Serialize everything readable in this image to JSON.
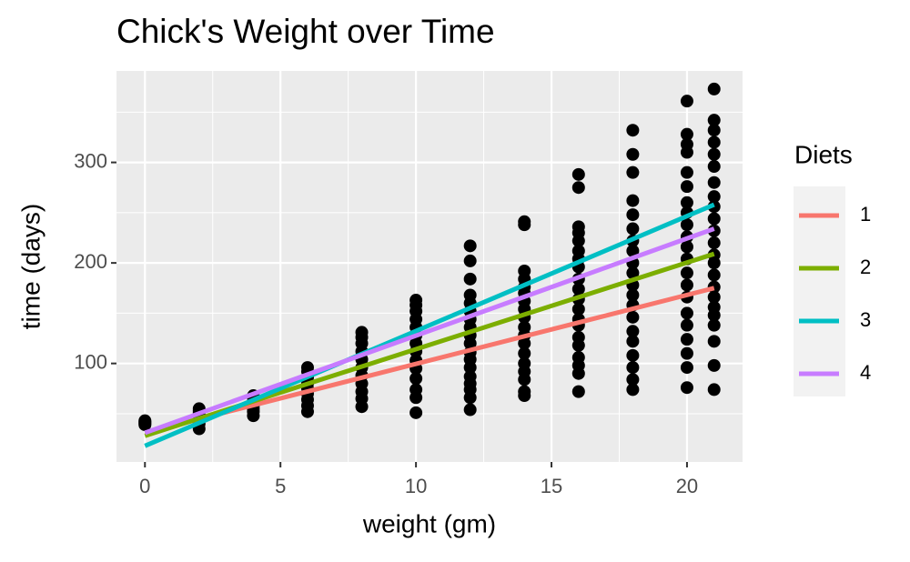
{
  "chart_data": {
    "type": "scatter",
    "title": "Chick's Weight over Time",
    "x_label": "weight (gm)",
    "y_label": "time (days)",
    "x": [
      0,
      0,
      0,
      0,
      0,
      2,
      2,
      2,
      2,
      2,
      2,
      2,
      4,
      4,
      4,
      4,
      4,
      4,
      4,
      6,
      6,
      6,
      6,
      6,
      6,
      6,
      6,
      6,
      8,
      8,
      8,
      8,
      8,
      8,
      8,
      8,
      8,
      8,
      8,
      10,
      10,
      10,
      10,
      10,
      10,
      10,
      10,
      10,
      10,
      10,
      10,
      10,
      10,
      12,
      12,
      12,
      12,
      12,
      12,
      12,
      12,
      12,
      12,
      12,
      12,
      12,
      12,
      12,
      12,
      12,
      12,
      14,
      14,
      14,
      14,
      14,
      14,
      14,
      14,
      14,
      14,
      14,
      14,
      14,
      14,
      14,
      14,
      14,
      14,
      16,
      16,
      16,
      16,
      16,
      16,
      16,
      16,
      16,
      16,
      16,
      16,
      16,
      16,
      16,
      16,
      16,
      16,
      16,
      16,
      18,
      18,
      18,
      18,
      18,
      18,
      18,
      18,
      18,
      18,
      18,
      18,
      18,
      18,
      18,
      18,
      18,
      18,
      18,
      18,
      20,
      20,
      20,
      20,
      20,
      20,
      20,
      20,
      20,
      20,
      20,
      20,
      20,
      20,
      20,
      20,
      20,
      20,
      20,
      20,
      20,
      21,
      21,
      21,
      21,
      21,
      21,
      21,
      21,
      21,
      21,
      21,
      21,
      21,
      21,
      21,
      21,
      21,
      21,
      21,
      21,
      21,
      21,
      21
    ],
    "values": [
      39,
      40,
      41,
      42,
      43,
      35,
      40,
      45,
      49,
      51,
      53,
      55,
      48,
      52,
      55,
      58,
      62,
      66,
      68,
      52,
      58,
      64,
      70,
      75,
      80,
      86,
      92,
      96,
      57,
      65,
      72,
      80,
      88,
      96,
      104,
      112,
      120,
      126,
      131,
      51,
      66,
      74,
      85,
      95,
      103,
      112,
      120,
      128,
      136,
      144,
      152,
      158,
      163,
      54,
      66,
      74,
      80,
      87,
      96,
      104,
      111,
      120,
      128,
      136,
      144,
      152,
      160,
      168,
      184,
      202,
      217,
      68,
      72,
      84,
      92,
      100,
      110,
      120,
      128,
      136,
      146,
      154,
      162,
      170,
      176,
      184,
      192,
      238,
      241,
      72,
      90,
      98,
      106,
      118,
      126,
      138,
      144,
      154,
      164,
      174,
      184,
      196,
      204,
      212,
      222,
      230,
      236,
      275,
      288,
      74,
      84,
      96,
      108,
      122,
      132,
      146,
      158,
      168,
      178,
      190,
      200,
      212,
      222,
      234,
      248,
      262,
      290,
      308,
      332,
      76,
      96,
      110,
      124,
      138,
      150,
      166,
      178,
      190,
      204,
      216,
      226,
      238,
      250,
      260,
      276,
      290,
      310,
      318,
      328,
      361,
      74,
      98,
      122,
      138,
      148,
      156,
      166,
      176,
      188,
      200,
      208,
      220,
      232,
      244,
      256,
      266,
      280,
      296,
      308,
      320,
      332,
      342,
      373
    ],
    "point_color": "#000000",
    "series": [
      {
        "name": "1",
        "color": "#F8766D",
        "x": [
          0,
          21
        ],
        "values": [
          31,
          175
        ]
      },
      {
        "name": "2",
        "color": "#7CAE00",
        "x": [
          0,
          21
        ],
        "values": [
          28,
          209
        ]
      },
      {
        "name": "3",
        "color": "#00BFC4",
        "x": [
          0,
          21
        ],
        "values": [
          18,
          258
        ]
      },
      {
        "name": "4",
        "color": "#C77CFF",
        "x": [
          0,
          21
        ],
        "values": [
          31,
          234
        ]
      }
    ],
    "legend_title": "Diets",
    "legend_position": "right",
    "xlim": [
      -1.05,
      22.05
    ],
    "ylim": [
      2,
      391
    ],
    "xticks": [
      0,
      5,
      10,
      15,
      20
    ],
    "yticks": [
      100,
      200,
      300
    ],
    "grid": true
  }
}
